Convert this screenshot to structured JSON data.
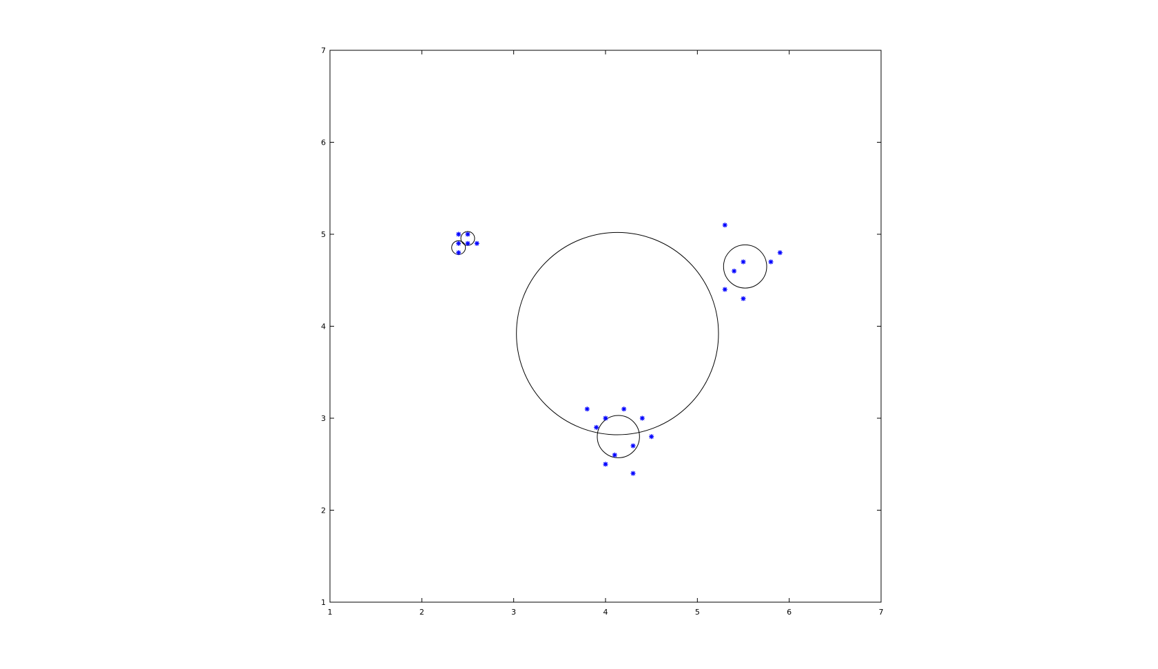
{
  "chart_data": {
    "type": "scatter",
    "title": "",
    "xlabel": "",
    "ylabel": "",
    "xlim": [
      1,
      7
    ],
    "ylim": [
      1,
      7
    ],
    "grid": false,
    "x_ticks": [
      1,
      2,
      3,
      4,
      5,
      6,
      7
    ],
    "y_ticks": [
      1,
      2,
      3,
      4,
      5,
      6,
      7
    ],
    "x_tick_labels": [
      "1",
      "2",
      "3",
      "4",
      "5",
      "6",
      "7"
    ],
    "y_tick_labels": [
      "1",
      "2",
      "3",
      "4",
      "5",
      "6",
      "7"
    ],
    "marker": "*",
    "marker_color": "#0000ff",
    "circle_color": "#000000",
    "points": [
      {
        "x": 2.4,
        "y": 5.0
      },
      {
        "x": 2.5,
        "y": 5.0
      },
      {
        "x": 2.4,
        "y": 4.9
      },
      {
        "x": 2.5,
        "y": 4.9
      },
      {
        "x": 2.6,
        "y": 4.9
      },
      {
        "x": 2.4,
        "y": 4.8
      },
      {
        "x": 5.3,
        "y": 5.1
      },
      {
        "x": 5.9,
        "y": 4.8
      },
      {
        "x": 5.5,
        "y": 4.7
      },
      {
        "x": 5.8,
        "y": 4.7
      },
      {
        "x": 5.4,
        "y": 4.6
      },
      {
        "x": 5.3,
        "y": 4.4
      },
      {
        "x": 5.5,
        "y": 4.3
      },
      {
        "x": 3.8,
        "y": 3.1
      },
      {
        "x": 4.2,
        "y": 3.1
      },
      {
        "x": 4.0,
        "y": 3.0
      },
      {
        "x": 4.4,
        "y": 3.0
      },
      {
        "x": 3.9,
        "y": 2.9
      },
      {
        "x": 4.5,
        "y": 2.8
      },
      {
        "x": 4.3,
        "y": 2.7
      },
      {
        "x": 4.1,
        "y": 2.6
      },
      {
        "x": 4.0,
        "y": 2.5
      },
      {
        "x": 4.3,
        "y": 2.4
      }
    ],
    "circles": [
      {
        "cx": 4.13,
        "cy": 3.92,
        "r": 1.1
      },
      {
        "cx": 5.52,
        "cy": 4.65,
        "r": 0.235
      },
      {
        "cx": 4.14,
        "cy": 2.8,
        "r": 0.23
      },
      {
        "cx": 2.5,
        "cy": 4.955,
        "r": 0.075
      },
      {
        "cx": 2.4,
        "cy": 4.855,
        "r": 0.075
      }
    ]
  }
}
